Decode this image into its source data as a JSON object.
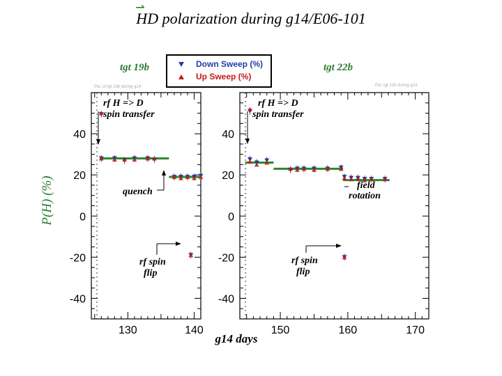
{
  "title": {
    "prefix": "H",
    "rest": "D polarization during g14/E06-101"
  },
  "chart_data": {
    "type": "scatter",
    "xlabel": "g14 days",
    "ylabel": "P(H) (%)",
    "colors": {
      "down": "#1f3ea8",
      "up": "#c81818",
      "fit": "#2a8a2a",
      "label_green": "#2e7d32"
    },
    "legend": {
      "placement": "top-center",
      "down": "Down Sweep (%)",
      "up": "Up Sweep (%)"
    },
    "panels": [
      {
        "name": "tgt 19b",
        "small_label": "Pol. of tgt 19b during g14",
        "xlim": [
          124.5,
          141
        ],
        "ylim": [
          -50,
          60
        ],
        "xticks": [
          130,
          140
        ],
        "yticks": [
          40,
          20,
          0,
          -20,
          -40
        ],
        "down": [
          [
            126,
            49.5
          ],
          [
            126,
            28
          ],
          [
            128,
            28
          ],
          [
            129.5,
            27
          ],
          [
            131,
            28
          ],
          [
            133,
            28
          ],
          [
            134,
            27.5
          ],
          [
            137,
            19
          ],
          [
            138,
            19
          ],
          [
            139,
            19
          ],
          [
            140,
            19
          ],
          [
            141,
            19.5
          ],
          [
            139.5,
            -19
          ]
        ],
        "up": [
          [
            126,
            50
          ],
          [
            126,
            28
          ],
          [
            128,
            27.5
          ],
          [
            129.5,
            27.5
          ],
          [
            131,
            27.5
          ],
          [
            133,
            28
          ],
          [
            134,
            28
          ],
          [
            137,
            19
          ],
          [
            138,
            18.5
          ],
          [
            139,
            19
          ],
          [
            140,
            18.5
          ],
          [
            141,
            19
          ],
          [
            139.5,
            -19
          ]
        ],
        "fits": [
          [
            125.8,
            136.2,
            28
          ],
          [
            136.2,
            141,
            19
          ]
        ],
        "annotations": [
          {
            "text": [
              "rf H => D",
              "spin transfer"
            ]
          },
          {
            "text": [
              "quench"
            ]
          },
          {
            "text": [
              "rf spin",
              "flip"
            ]
          }
        ]
      },
      {
        "name": "tgt 22b",
        "small_label": "Pol. tgt 22b during g14",
        "xlim": [
          144,
          172
        ],
        "ylim": [
          -50,
          60
        ],
        "xticks": [
          150,
          160,
          170
        ],
        "yticks": [
          40,
          20,
          0,
          -20,
          -40
        ],
        "down": [
          [
            145.5,
            51
          ],
          [
            145.5,
            27.5
          ],
          [
            146.5,
            26
          ],
          [
            148,
            27
          ],
          [
            151.5,
            22.5
          ],
          [
            152.5,
            23
          ],
          [
            153.5,
            23
          ],
          [
            155,
            23
          ],
          [
            157,
            23
          ],
          [
            159,
            23.5
          ],
          [
            159.5,
            19
          ],
          [
            160.5,
            18.5
          ],
          [
            161.5,
            18.5
          ],
          [
            162.5,
            18
          ],
          [
            163.5,
            18
          ],
          [
            165.5,
            18
          ],
          [
            159.5,
            -20
          ]
        ],
        "up": [
          [
            145.5,
            52
          ],
          [
            145.5,
            26.5
          ],
          [
            146.5,
            25
          ],
          [
            148,
            26
          ],
          [
            151.5,
            23
          ],
          [
            152.5,
            22.5
          ],
          [
            153.5,
            23
          ],
          [
            155,
            22.5
          ],
          [
            157,
            23
          ],
          [
            159,
            23
          ],
          [
            159.5,
            18.5
          ],
          [
            160.5,
            18
          ],
          [
            161.5,
            18.5
          ],
          [
            162.5,
            17.5
          ],
          [
            163.5,
            18
          ],
          [
            165.5,
            18
          ],
          [
            159.5,
            -20
          ]
        ],
        "fits": [
          [
            144.8,
            149,
            26
          ],
          [
            149,
            159.3,
            23
          ],
          [
            159.3,
            166.2,
            17.5
          ]
        ],
        "annotations": [
          {
            "text": [
              "rf H => D",
              "spin transfer"
            ]
          },
          {
            "text": [
              "field",
              "rotation"
            ]
          },
          {
            "text": [
              "rf spin",
              "flip"
            ]
          }
        ]
      }
    ]
  }
}
